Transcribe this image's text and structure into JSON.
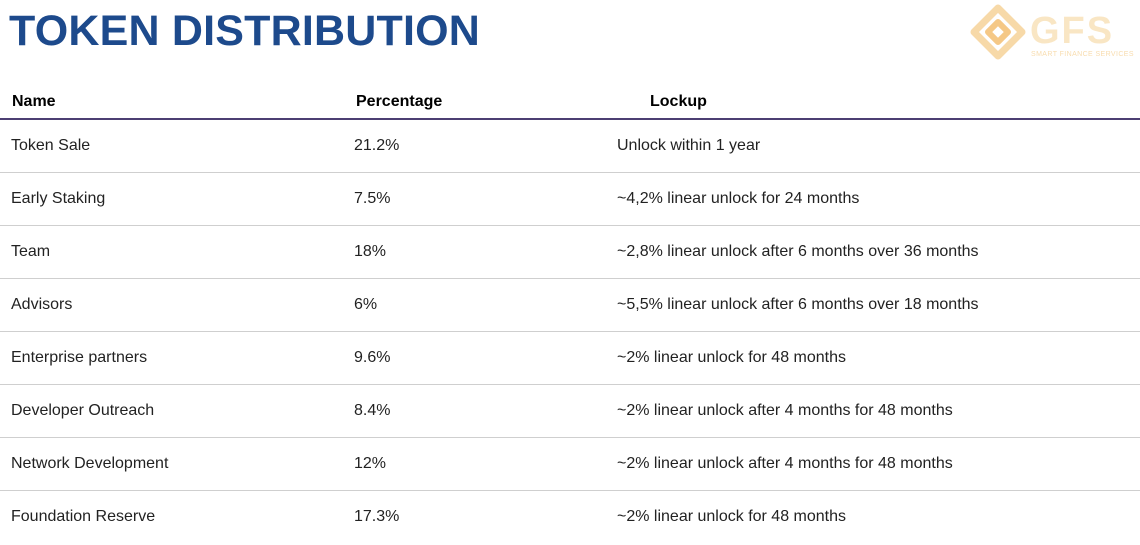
{
  "title": "TOKEN DISTRIBUTION",
  "logo": {
    "name": "GFS",
    "tagline": "SMART FINANCE SERVICES",
    "color": "#f7c984"
  },
  "accent_color": "#1d4a8c",
  "table": {
    "headers": {
      "name": "Name",
      "percentage": "Percentage",
      "lockup": "Lockup"
    },
    "rows": [
      {
        "name": "Token Sale",
        "percentage": "21.2%",
        "lockup": "Unlock within 1 year"
      },
      {
        "name": "Early Staking",
        "percentage": "7.5%",
        "lockup": "~4,2% linear unlock for 24 months"
      },
      {
        "name": "Team",
        "percentage": "18%",
        "lockup": "~2,8% linear unlock after 6 months over 36 months"
      },
      {
        "name": "Advisors",
        "percentage": "6%",
        "lockup": "~5,5% linear unlock after 6 months over 18 months"
      },
      {
        "name": "Enterprise partners",
        "percentage": "9.6%",
        "lockup": "~2% linear unlock for 48 months"
      },
      {
        "name": "Developer Outreach",
        "percentage": "8.4%",
        "lockup": "~2% linear unlock after 4 months for 48 months"
      },
      {
        "name": "Network Development",
        "percentage": "12%",
        "lockup": "~2% linear unlock after 4 months for 48 months"
      },
      {
        "name": "Foundation Reserve",
        "percentage": "17.3%",
        "lockup": "~2% linear unlock for 48 months"
      }
    ]
  }
}
